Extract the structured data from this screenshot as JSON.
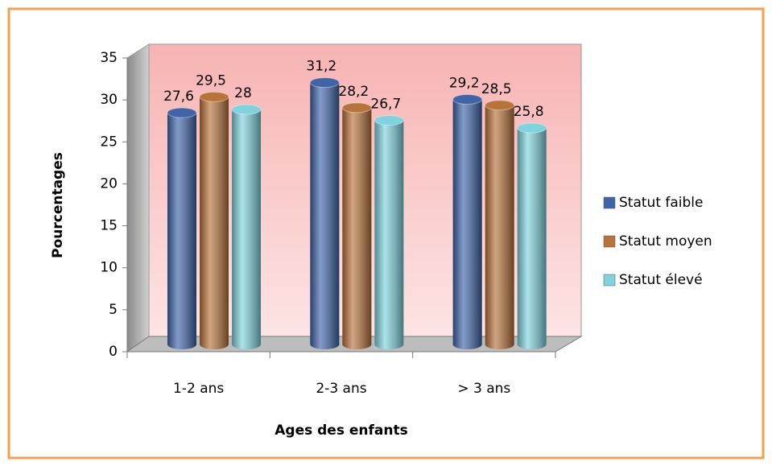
{
  "chart_data": {
    "type": "bar",
    "categories": [
      "1-2 ans",
      "2-3 ans",
      "> 3 ans"
    ],
    "series": [
      {
        "name": "Statut faible",
        "color": "#3f64a8",
        "values": [
          27.6,
          31.2,
          29.2
        ],
        "value_labels": [
          "27,6",
          "31,2",
          "29,2"
        ]
      },
      {
        "name": "Statut moyen",
        "color": "#b8733a",
        "values": [
          29.5,
          28.2,
          28.5
        ],
        "value_labels": [
          "29,5",
          "28,2",
          "28,5"
        ]
      },
      {
        "name": "Statut élevé",
        "color": "#7fd3df",
        "values": [
          28,
          26.7,
          25.8
        ],
        "value_labels": [
          "28",
          "26,7",
          "25,8"
        ]
      }
    ],
    "ylim": [
      0,
      35
    ],
    "yticks": [
      0,
      5,
      10,
      15,
      20,
      25,
      30,
      35
    ],
    "xlabel": "Ages des enfants",
    "ylabel": "Pourcentages"
  }
}
